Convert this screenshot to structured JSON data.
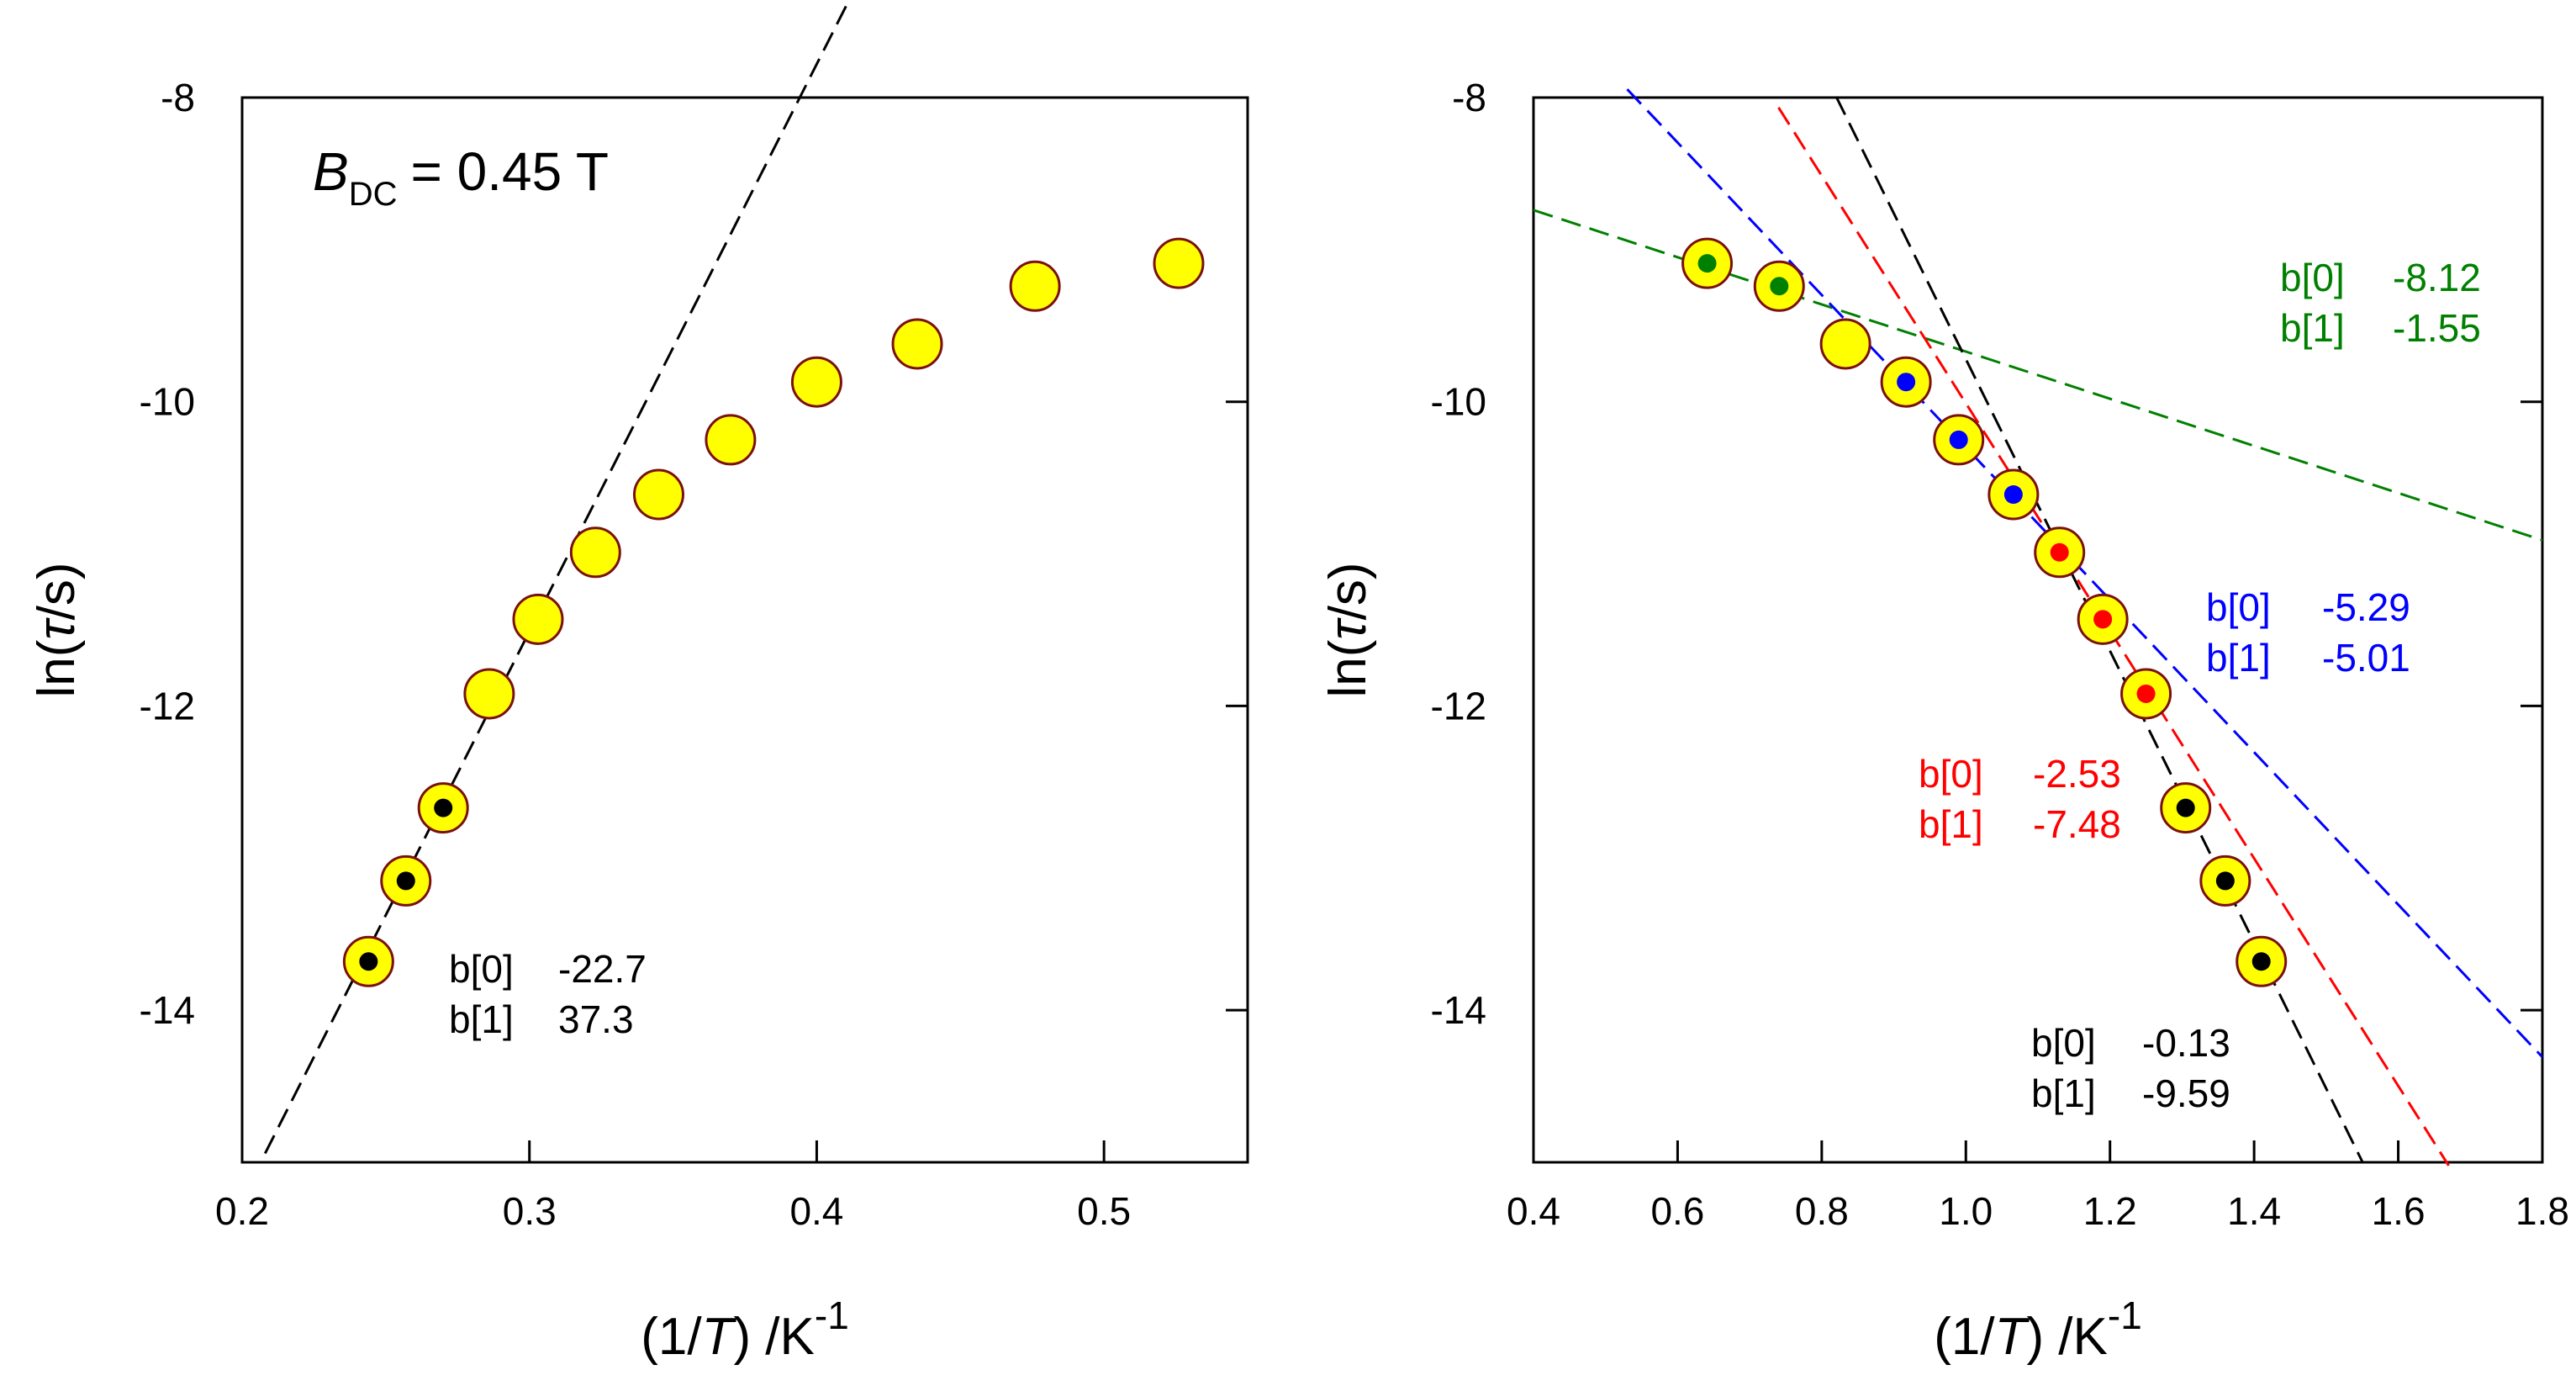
{
  "chart_data": [
    {
      "type": "scatter",
      "title": "",
      "annotation_field": "B_DC = 0.45 T",
      "field_symbol": "B",
      "field_subscript": "DC",
      "field_value": "= 0.45 T",
      "xlabel_prefix": "(1/",
      "xlabel_var": "T",
      "xlabel_suffix": ") /K",
      "xlabel_exp": "-1",
      "ylabel_prefix": "ln(",
      "ylabel_var": "τ",
      "ylabel_suffix": "/s)",
      "xlim": [
        0.2,
        0.55
      ],
      "ylim": [
        -15,
        -8
      ],
      "xticks": [
        0.2,
        0.3,
        0.4,
        0.5
      ],
      "xtick_labels": [
        "0.2",
        "0.3",
        "0.4",
        "0.5"
      ],
      "yticks": [
        -8,
        -10,
        -12,
        -14
      ],
      "ytick_labels": [
        "-8",
        "-10",
        "-12",
        "-14"
      ],
      "x": [
        0.244,
        0.257,
        0.27,
        0.286,
        0.303,
        0.323,
        0.345,
        0.37,
        0.4,
        0.435,
        0.476,
        0.526
      ],
      "y": [
        -13.68,
        -13.15,
        -12.67,
        -11.92,
        -11.43,
        -10.99,
        -10.61,
        -10.25,
        -9.87,
        -9.62,
        -9.24,
        -9.09
      ],
      "fitted_points": [
        0,
        1,
        2
      ],
      "fits": [
        {
          "color": "#000000",
          "b0": -22.7,
          "b1": 37.3,
          "b0_label": "b[0]",
          "b0_value": "-22.7",
          "b1_label": "b[1]",
          "b1_value": "37.3",
          "x_range": [
            0.208,
            0.48
          ]
        }
      ]
    },
    {
      "type": "scatter",
      "title": "",
      "xlabel_prefix": "(1/",
      "xlabel_var": "T",
      "xlabel_suffix": ") /K",
      "xlabel_exp": "-1",
      "ylabel_prefix": "ln(",
      "ylabel_var": "τ",
      "ylabel_suffix": "/s)",
      "xlim": [
        0.4,
        1.8
      ],
      "ylim": [
        -15,
        -8
      ],
      "xticks": [
        0.4,
        0.6,
        0.8,
        1.0,
        1.2,
        1.4,
        1.6,
        1.8
      ],
      "xtick_labels": [
        "0.4",
        "0.6",
        "0.8",
        "1.0",
        "1.2",
        "1.4",
        "1.6",
        "1.8"
      ],
      "yticks": [
        -8,
        -10,
        -12,
        -14
      ],
      "ytick_labels": [
        "-8",
        "-10",
        "-12",
        "-14"
      ],
      "x": [
        0.641,
        0.741,
        0.833,
        0.917,
        0.99,
        1.066,
        1.13,
        1.19,
        1.25,
        1.305,
        1.36,
        1.41
      ],
      "y": [
        -9.09,
        -9.24,
        -9.62,
        -9.87,
        -10.25,
        -10.61,
        -10.99,
        -11.43,
        -11.92,
        -12.67,
        -13.15,
        -13.68
      ],
      "fits": [
        {
          "color": "#008000",
          "b0": -8.12,
          "b1": -1.55,
          "b0_label": "b[0]",
          "b0_value": "-8.12",
          "b1_label": "b[1]",
          "b1_value": "-1.55",
          "x_range": [
            0.4,
            1.8
          ],
          "points": [
            0,
            1
          ]
        },
        {
          "color": "#0000ff",
          "b0": -5.29,
          "b1": -5.01,
          "b0_label": "b[0]",
          "b0_value": "-5.29",
          "b1_label": "b[1]",
          "b1_value": "-5.01",
          "x_range": [
            0.53,
            1.8
          ],
          "points": [
            3,
            4,
            5
          ]
        },
        {
          "color": "#ff0000",
          "b0": -2.53,
          "b1": -7.48,
          "b0_label": "b[0]",
          "b0_value": "-2.53",
          "b1_label": "b[1]",
          "b1_value": "-7.48",
          "x_range": [
            0.74,
            1.67
          ],
          "points": [
            6,
            7,
            8
          ]
        },
        {
          "color": "#000000",
          "b0": -0.13,
          "b1": -9.59,
          "b0_label": "b[0]",
          "b0_value": "-0.13",
          "b1_label": "b[1]",
          "b1_value": "-9.59",
          "x_range": [
            0.82,
            1.55
          ],
          "points": [
            9,
            10,
            11
          ]
        }
      ]
    }
  ]
}
